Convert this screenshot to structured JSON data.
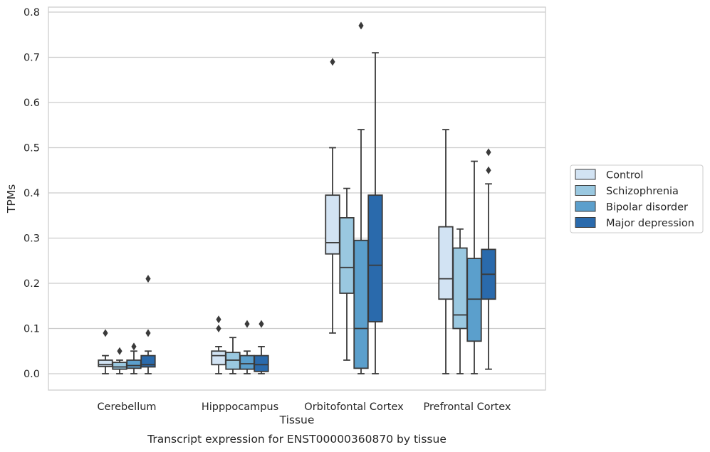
{
  "chart_data": {
    "type": "box",
    "title": "",
    "caption": "Transcript expression for ENST00000360870 by tissue",
    "xlabel": "Tissue",
    "ylabel": "TPMs",
    "ylim": [
      -0.04,
      0.81
    ],
    "yticks": [
      "0.0",
      "0.1",
      "0.2",
      "0.3",
      "0.4",
      "0.5",
      "0.6",
      "0.7",
      "0.8"
    ],
    "ytick_values": [
      0,
      0.1,
      0.2,
      0.3,
      0.4,
      0.5,
      0.6,
      0.7,
      0.8
    ],
    "grid": "horizontal",
    "legend_position": "right",
    "categories": [
      "Cerebellum",
      "Hipppocampus",
      "Orbitofontal Cortex",
      "Prefrontal Cortex"
    ],
    "series": [
      {
        "name": "Control",
        "color": "#d2e3f3",
        "boxes": [
          {
            "whislo": 0.0,
            "q1": 0.016,
            "med": 0.02,
            "q3": 0.03,
            "whishi": 0.04,
            "fliers": [
              0.09
            ]
          },
          {
            "whislo": 0.0,
            "q1": 0.02,
            "med": 0.04,
            "q3": 0.05,
            "whishi": 0.06,
            "fliers": [
              0.1,
              0.12
            ]
          },
          {
            "whislo": 0.09,
            "q1": 0.265,
            "med": 0.29,
            "q3": 0.395,
            "whishi": 0.5,
            "fliers": [
              0.69
            ]
          },
          {
            "whislo": 0.0,
            "q1": 0.165,
            "med": 0.21,
            "q3": 0.325,
            "whishi": 0.54,
            "fliers": []
          }
        ]
      },
      {
        "name": "Schizophrenia",
        "color": "#9ac8e0",
        "boxes": [
          {
            "whislo": 0.0,
            "q1": 0.01,
            "med": 0.015,
            "q3": 0.025,
            "whishi": 0.03,
            "fliers": [
              0.05
            ]
          },
          {
            "whislo": 0.0,
            "q1": 0.01,
            "med": 0.03,
            "q3": 0.047,
            "whishi": 0.08,
            "fliers": []
          },
          {
            "whislo": 0.03,
            "q1": 0.178,
            "med": 0.235,
            "q3": 0.345,
            "whishi": 0.41,
            "fliers": []
          },
          {
            "whislo": 0.0,
            "q1": 0.1,
            "med": 0.13,
            "q3": 0.278,
            "whishi": 0.32,
            "fliers": []
          }
        ]
      },
      {
        "name": "Bipolar disorder",
        "color": "#5b9fcc",
        "boxes": [
          {
            "whislo": 0.0,
            "q1": 0.012,
            "med": 0.018,
            "q3": 0.03,
            "whishi": 0.05,
            "fliers": [
              0.06
            ]
          },
          {
            "whislo": 0.0,
            "q1": 0.01,
            "med": 0.022,
            "q3": 0.04,
            "whishi": 0.05,
            "fliers": [
              0.11
            ]
          },
          {
            "whislo": 0.0,
            "q1": 0.012,
            "med": 0.1,
            "q3": 0.295,
            "whishi": 0.54,
            "fliers": [
              0.77
            ]
          },
          {
            "whislo": 0.0,
            "q1": 0.072,
            "med": 0.165,
            "q3": 0.255,
            "whishi": 0.47,
            "fliers": []
          }
        ]
      },
      {
        "name": "Major depression",
        "color": "#2a6aac",
        "boxes": [
          {
            "whislo": 0.0,
            "q1": 0.015,
            "med": 0.02,
            "q3": 0.04,
            "whishi": 0.05,
            "fliers": [
              0.09,
              0.21
            ]
          },
          {
            "whislo": 0.0,
            "q1": 0.005,
            "med": 0.02,
            "q3": 0.04,
            "whishi": 0.06,
            "fliers": [
              0.11
            ]
          },
          {
            "whislo": 0.0,
            "q1": 0.115,
            "med": 0.24,
            "q3": 0.395,
            "whishi": 0.71,
            "fliers": []
          },
          {
            "whislo": 0.01,
            "q1": 0.165,
            "med": 0.22,
            "q3": 0.275,
            "whishi": 0.42,
            "fliers": [
              0.45,
              0.49
            ]
          }
        ]
      }
    ]
  }
}
